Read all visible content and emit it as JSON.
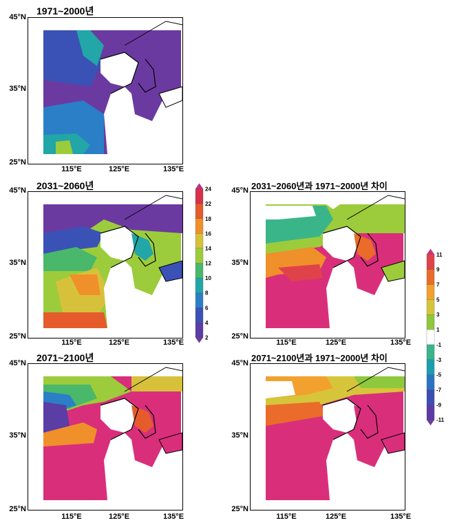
{
  "axes": {
    "lat_labels": [
      "45°N",
      "35°N",
      "25°N"
    ],
    "lon_labels": [
      "115°E",
      "125°E",
      "135°E"
    ]
  },
  "panels": [
    {
      "id": "p1",
      "title": "1971~2000년",
      "scheme": "abs-1971"
    },
    {
      "id": "p2",
      "title": "2031~2060년",
      "scheme": "abs-2031"
    },
    {
      "id": "p3",
      "title": "2071~2100년",
      "scheme": "abs-2071"
    },
    {
      "id": "p4",
      "title": "2031~2060년과 1971~2000년 차이",
      "scheme": "diff-2031"
    },
    {
      "id": "p5",
      "title": "2071~2100년과 1971~2000년 차이",
      "scheme": "diff-2071"
    }
  ],
  "colorbar_absolute": {
    "labels": [
      "24",
      "22",
      "18",
      "16",
      "14",
      "12",
      "10",
      "8",
      "6",
      "4",
      "2"
    ],
    "colors": [
      "#c42a8d",
      "#d7314a",
      "#e55b2c",
      "#f0902a",
      "#d7c13b",
      "#9ccc3b",
      "#49b86a",
      "#22a6a7",
      "#2b7fc7",
      "#3a52b5",
      "#5a3da5",
      "#6b3aa0"
    ]
  },
  "colorbar_difference": {
    "labels": [
      "11",
      "9",
      "7",
      "5",
      "3",
      "1",
      "-1",
      "-3",
      "-5",
      "-7",
      "-9",
      "-11"
    ],
    "colors": [
      "#d92f7a",
      "#e0424a",
      "#ea6b2a",
      "#f2a12e",
      "#d6c53a",
      "#8ec83c",
      "#ffffff",
      "#3ab58a",
      "#1d9db0",
      "#2a75c2",
      "#3b4eb3",
      "#5a3ca6",
      "#6e3aa0"
    ]
  }
}
